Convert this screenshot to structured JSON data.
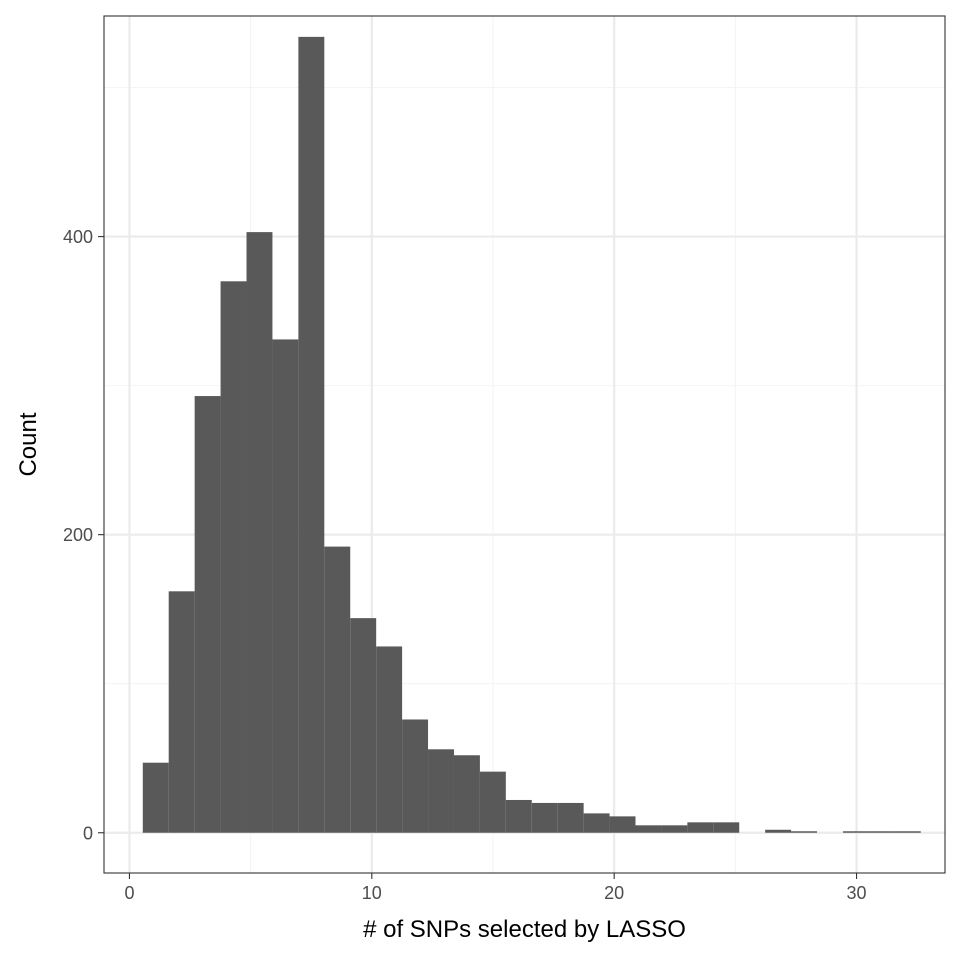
{
  "colors": {
    "bar_fill": "#595959",
    "panel_border": "#333333",
    "grid_major": "#ebebeb",
    "grid_minor": "#f4f4f4",
    "tick_label": "#4d4d4d",
    "background": "#ffffff"
  },
  "chart_data": {
    "type": "bar",
    "subtype": "histogram",
    "title": "",
    "xlabel": "# of SNPs selected by LASSO",
    "ylabel": "Count",
    "xlim": [
      -1.05,
      33.65
    ],
    "ylim": [
      -27,
      548
    ],
    "xticks": [
      0,
      10,
      20,
      30
    ],
    "xtick_labels": [
      "0",
      "10",
      "20",
      "30"
    ],
    "yticks": [
      0,
      200,
      400
    ],
    "ytick_labels": [
      "0",
      "200",
      "400"
    ],
    "x_minor_ticks": [
      5,
      15,
      25
    ],
    "y_minor_ticks": [
      100,
      300,
      500
    ],
    "grid": true,
    "legend": "none",
    "bin_width": 1.07,
    "bins": [
      {
        "start": 0.55,
        "end": 1.62,
        "count": 47
      },
      {
        "start": 1.62,
        "end": 2.69,
        "count": 162
      },
      {
        "start": 2.69,
        "end": 3.76,
        "count": 293
      },
      {
        "start": 3.76,
        "end": 4.83,
        "count": 370
      },
      {
        "start": 4.83,
        "end": 5.9,
        "count": 403
      },
      {
        "start": 5.9,
        "end": 6.97,
        "count": 331
      },
      {
        "start": 6.97,
        "end": 8.04,
        "count": 534
      },
      {
        "start": 8.04,
        "end": 9.11,
        "count": 192
      },
      {
        "start": 9.11,
        "end": 10.18,
        "count": 144
      },
      {
        "start": 10.18,
        "end": 11.25,
        "count": 125
      },
      {
        "start": 11.25,
        "end": 12.32,
        "count": 76
      },
      {
        "start": 12.32,
        "end": 13.39,
        "count": 56
      },
      {
        "start": 13.39,
        "end": 14.46,
        "count": 52
      },
      {
        "start": 14.46,
        "end": 15.53,
        "count": 41
      },
      {
        "start": 15.53,
        "end": 16.6,
        "count": 22
      },
      {
        "start": 16.6,
        "end": 17.67,
        "count": 20
      },
      {
        "start": 17.67,
        "end": 18.74,
        "count": 20
      },
      {
        "start": 18.74,
        "end": 19.81,
        "count": 13
      },
      {
        "start": 19.81,
        "end": 20.88,
        "count": 11
      },
      {
        "start": 20.88,
        "end": 21.95,
        "count": 5
      },
      {
        "start": 21.95,
        "end": 23.02,
        "count": 5
      },
      {
        "start": 23.02,
        "end": 24.09,
        "count": 7
      },
      {
        "start": 24.09,
        "end": 25.16,
        "count": 7
      },
      {
        "start": 25.16,
        "end": 26.23,
        "count": 0
      },
      {
        "start": 26.23,
        "end": 27.3,
        "count": 2
      },
      {
        "start": 27.3,
        "end": 28.37,
        "count": 1
      },
      {
        "start": 28.37,
        "end": 29.44,
        "count": 0
      },
      {
        "start": 29.44,
        "end": 30.51,
        "count": 1
      },
      {
        "start": 30.51,
        "end": 31.58,
        "count": 1
      },
      {
        "start": 31.58,
        "end": 32.65,
        "count": 1
      }
    ]
  }
}
